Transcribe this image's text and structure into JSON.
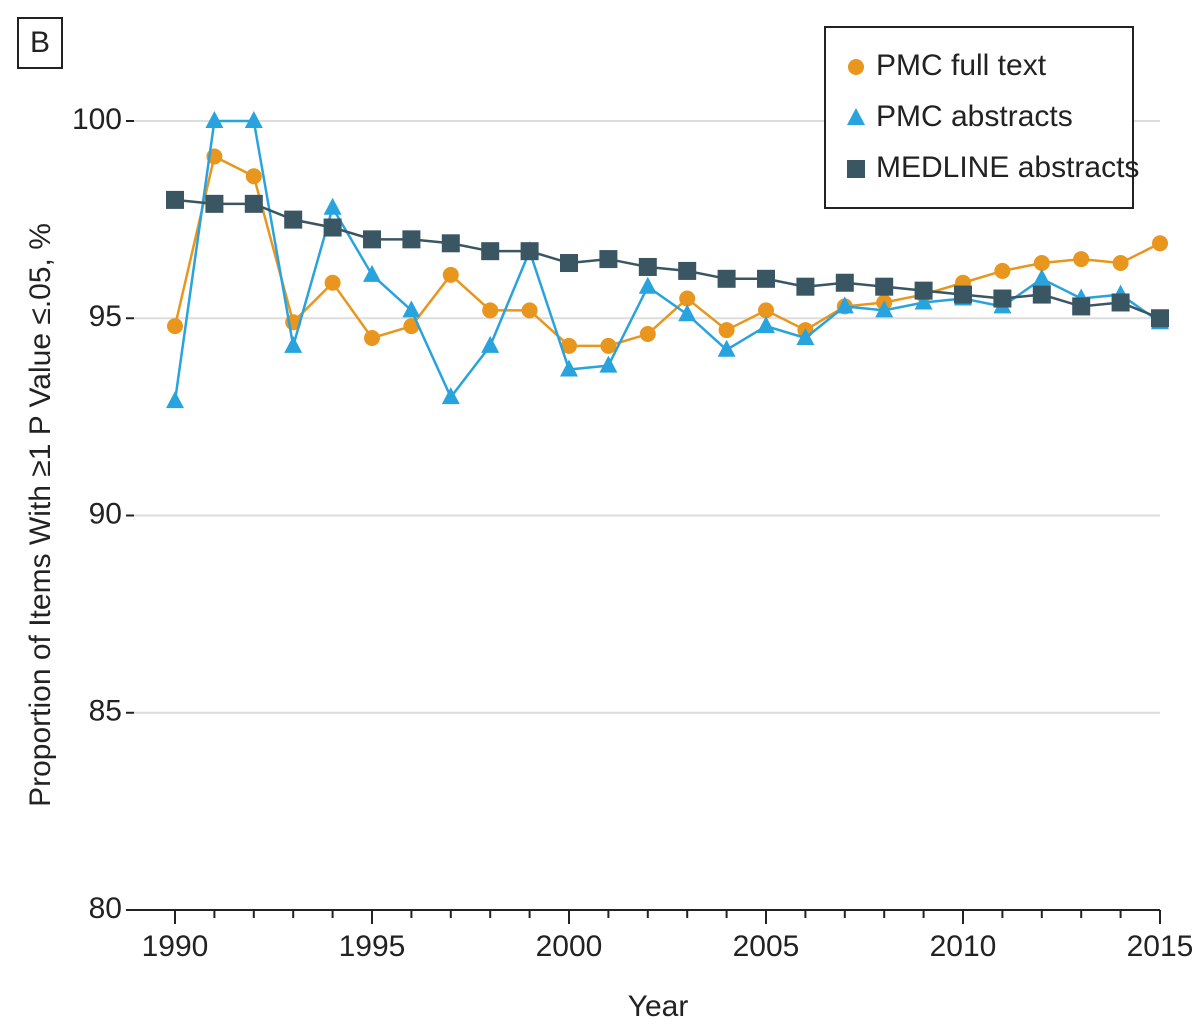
{
  "chart_data": {
    "type": "line",
    "panel_label": "B",
    "x_label": "Year",
    "y_label": "Proportion of Items With ≥1 P Value ≤.05, %",
    "x": [
      1990,
      1991,
      1992,
      1993,
      1994,
      1995,
      1996,
      1997,
      1998,
      1999,
      2000,
      2001,
      2002,
      2003,
      2004,
      2005,
      2006,
      2007,
      2008,
      2009,
      2010,
      2011,
      2012,
      2013,
      2014,
      2015
    ],
    "series": [
      {
        "name": "PMC full text",
        "color": "#e8961e",
        "marker": "circle",
        "values": [
          94.8,
          99.1,
          98.6,
          94.9,
          95.9,
          94.5,
          94.8,
          96.1,
          95.2,
          95.2,
          94.3,
          94.3,
          94.6,
          95.5,
          94.7,
          95.2,
          94.7,
          95.3,
          95.4,
          95.6,
          95.9,
          96.2,
          96.4,
          96.5,
          96.4,
          96.9
        ]
      },
      {
        "name": "PMC abstracts",
        "color": "#29a3dd",
        "marker": "triangle",
        "values": [
          92.9,
          100,
          100,
          94.3,
          97.8,
          96.1,
          95.2,
          93.0,
          94.3,
          96.7,
          93.7,
          93.8,
          95.8,
          95.1,
          94.2,
          94.8,
          94.5,
          95.3,
          95.2,
          95.4,
          95.5,
          95.3,
          96.0,
          95.5,
          95.6,
          94.9
        ]
      },
      {
        "name": "MEDLINE abstracts",
        "color": "#3a5663",
        "marker": "square",
        "values": [
          98.0,
          97.9,
          97.9,
          97.5,
          97.3,
          97.0,
          97.0,
          96.9,
          96.7,
          96.7,
          96.4,
          96.5,
          96.3,
          96.2,
          96.0,
          96.0,
          95.8,
          95.9,
          95.8,
          95.7,
          95.6,
          95.5,
          95.6,
          95.3,
          95.4,
          95.0
        ]
      }
    ],
    "xlim": [
      1990,
      2015
    ],
    "xticks": [
      1990,
      1995,
      2000,
      2005,
      2010,
      2015
    ],
    "ylim": [
      80,
      100
    ],
    "yticks": [
      80,
      85,
      90,
      95,
      100
    ],
    "grid": true,
    "legend": "upper right"
  }
}
